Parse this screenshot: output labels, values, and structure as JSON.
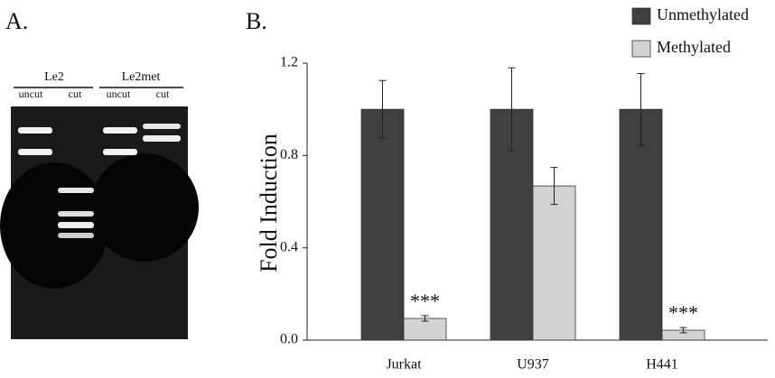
{
  "panel_a": {
    "label": "A.",
    "lanes": [
      {
        "name": "Le2",
        "sub": [
          "uncut",
          "cut"
        ]
      },
      {
        "name": "Le2met",
        "sub": [
          "uncut",
          "cut"
        ]
      }
    ]
  },
  "chart_data": {
    "type": "bar",
    "panel_label": "B.",
    "y_label": "Fold Induction",
    "categories": [
      "Jurkat",
      "U937",
      "H441"
    ],
    "series": [
      {
        "name": "Unmethylated",
        "color": "#404040",
        "values": [
          1.0,
          1.0,
          1.0
        ],
        "errors": [
          0.125,
          0.18,
          0.155
        ]
      },
      {
        "name": "Methylated",
        "color": "#d3d3d3",
        "values": [
          0.094,
          0.668,
          0.043
        ],
        "errors": [
          0.012,
          0.08,
          0.011
        ]
      }
    ],
    "ylim": [
      0,
      1.2
    ],
    "yticks": [
      {
        "value": 0,
        "label": "0.0"
      },
      0.4,
      0.8,
      1.2
    ],
    "grid": false,
    "legend": "top-right",
    "annotations": [
      {
        "text": "***",
        "x": "Jurkat",
        "series": "Methylated"
      },
      {
        "text": "***",
        "x": "H441",
        "series": "Methylated"
      }
    ]
  }
}
